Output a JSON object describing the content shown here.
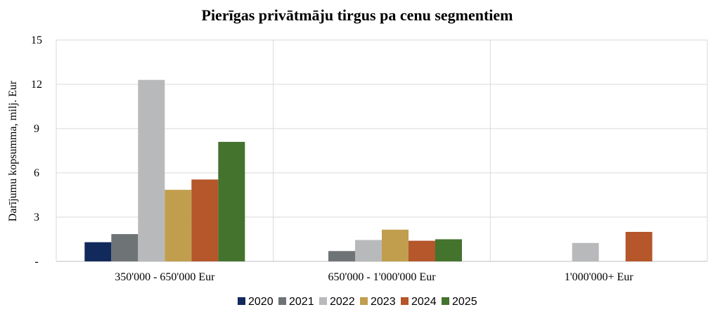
{
  "chart_data": {
    "type": "bar",
    "title": "Pierīgas privātmāju tirgus pa cenu segmentiem",
    "ylabel": "Darījumu kopsumma, milj. Eur",
    "xlabel": "",
    "categories": [
      "350'000 - 650'000 Eur",
      "650'000 - 1'000'000 Eur",
      "1'000'000+ Eur"
    ],
    "ylim": [
      0,
      15
    ],
    "yticks": [
      0,
      3,
      6,
      9,
      12,
      15
    ],
    "ytick_labels": [
      "-",
      "3",
      "6",
      "9",
      "12",
      "15"
    ],
    "grid": true,
    "legend_position": "bottom",
    "series": [
      {
        "name": "2020",
        "color": "#12295c",
        "values": [
          1.3,
          0,
          0
        ]
      },
      {
        "name": "2021",
        "color": "#6e7376",
        "values": [
          1.85,
          0.7,
          0
        ]
      },
      {
        "name": "2022",
        "color": "#b8b9bb",
        "values": [
          12.3,
          1.45,
          1.25
        ]
      },
      {
        "name": "2023",
        "color": "#c19e4e",
        "values": [
          4.85,
          2.15,
          0
        ]
      },
      {
        "name": "2024",
        "color": "#b5562b",
        "values": [
          5.55,
          1.4,
          2.0
        ]
      },
      {
        "name": "2025",
        "color": "#44732e",
        "values": [
          8.1,
          1.5,
          0
        ]
      }
    ]
  }
}
